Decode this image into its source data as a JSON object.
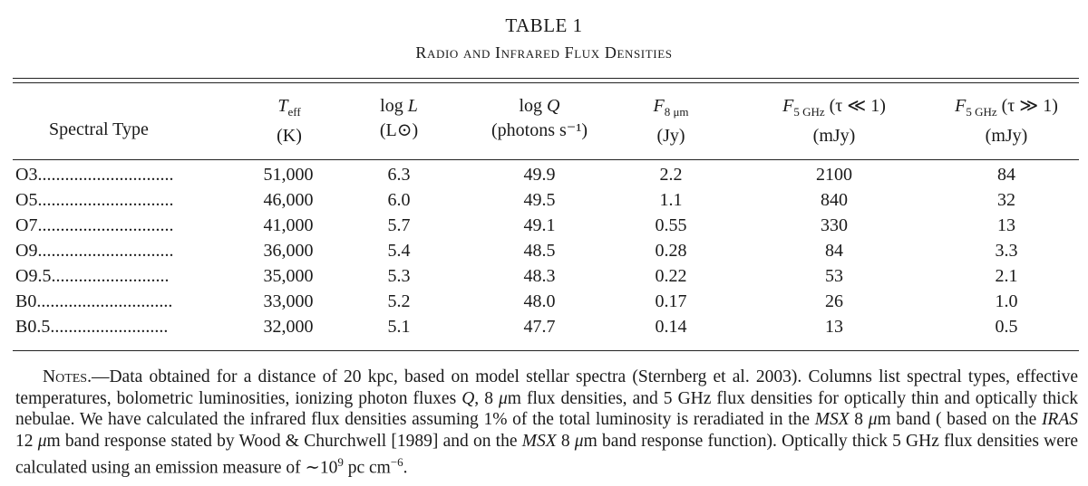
{
  "table": {
    "number": "TABLE 1",
    "title": "Radio and Infrared Flux Densities",
    "headers": {
      "spectral_type": "Spectral Type",
      "teff_symbol": "T",
      "teff_sub": "eff",
      "teff_unit": "(K)",
      "logl_prefix": "log ",
      "logl_symbol": "L",
      "logl_unit": "(L⊙)",
      "logq_prefix": "log ",
      "logq_symbol": "Q",
      "logq_unit": "(photons s⁻¹)",
      "f8_symbol": "F",
      "f8_sub": "8 μm",
      "f8_unit": "(Jy)",
      "f5a_symbol": "F",
      "f5a_sub": "5 GHz",
      "f5a_cond": " (τ ≪ 1)",
      "f5a_unit": "(mJy)",
      "f5b_symbol": "F",
      "f5b_sub": "5 GHz",
      "f5b_cond": " (τ ≫ 1)",
      "f5b_unit": "(mJy)"
    },
    "rows": [
      {
        "type": "O3..............................",
        "teff": "51,000",
        "logl": "6.3",
        "logq": "49.9",
        "f8": "2.2",
        "f5a": "2100",
        "f5b": "84"
      },
      {
        "type": "O5..............................",
        "teff": "46,000",
        "logl": "6.0",
        "logq": "49.5",
        "f8": "1.1",
        "f5a": "840",
        "f5b": "32"
      },
      {
        "type": "O7..............................",
        "teff": "41,000",
        "logl": "5.7",
        "logq": "49.1",
        "f8": "0.55",
        "f5a": "330",
        "f5b": "13"
      },
      {
        "type": "O9..............................",
        "teff": "36,000",
        "logl": "5.4",
        "logq": "48.5",
        "f8": "0.28",
        "f5a": "84",
        "f5b": "3.3"
      },
      {
        "type": "O9.5..........................",
        "teff": "35,000",
        "logl": "5.3",
        "logq": "48.3",
        "f8": "0.22",
        "f5a": "53",
        "f5b": "2.1"
      },
      {
        "type": "B0..............................",
        "teff": "33,000",
        "logl": "5.2",
        "logq": "48.0",
        "f8": "0.17",
        "f5a": "26",
        "f5b": "1.0"
      },
      {
        "type": "B0.5..........................",
        "teff": "32,000",
        "logl": "5.1",
        "logq": "47.7",
        "f8": "0.14",
        "f5a": "13",
        "f5b": "0.5"
      }
    ]
  },
  "notes": {
    "label": "Notes.",
    "dash": "—",
    "t1": "Data obtained for a distance of 20 kpc, based on model stellar spectra (Sternberg et al. 2003). Columns list spectral types, effective temperatures, bolometric luminosities, ionizing photon fluxes ",
    "q": "Q",
    "t2": ", 8 ",
    "mu1": "μ",
    "t3": "m flux densities, and 5 GHz flux densities for optically thin and optically thick nebulae. We have calculated the infrared flux densities assuming 1% of the total luminosity is reradiated in the ",
    "msx1": "MSX",
    "t4": " 8 ",
    "mu2": "μ",
    "t5": "m band ( based on the ",
    "iras": "IRAS",
    "t6": " 12 ",
    "mu3": "μ",
    "t7": "m band response stated by Wood & Churchwell [1989] and on the ",
    "msx2": "MSX",
    "t8": " 8 ",
    "mu4": "μ",
    "t9": "m band response function). Optically thick 5 GHz flux densities were calculated using an emission measure of ∼10",
    "exp9": "9",
    "t10": " pc cm",
    "expm6": "−6",
    "t11": "."
  }
}
